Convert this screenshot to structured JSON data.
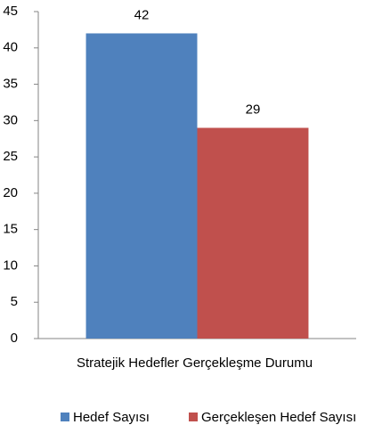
{
  "chart_data": {
    "type": "bar",
    "categories": [
      "Stratejik Hedefler Gerçekleşme Durumu"
    ],
    "series": [
      {
        "name": "Hedef Sayısı",
        "color": "#4f81bd",
        "values": [
          42
        ]
      },
      {
        "name": "Gerçekleşen Hedef Sayısı",
        "color": "#c0504d",
        "values": [
          29
        ]
      }
    ],
    "ylim": [
      0,
      45
    ],
    "yticks": [
      0,
      5,
      10,
      15,
      20,
      25,
      30,
      35,
      40,
      45
    ],
    "grid": false,
    "legend": "bottom"
  }
}
